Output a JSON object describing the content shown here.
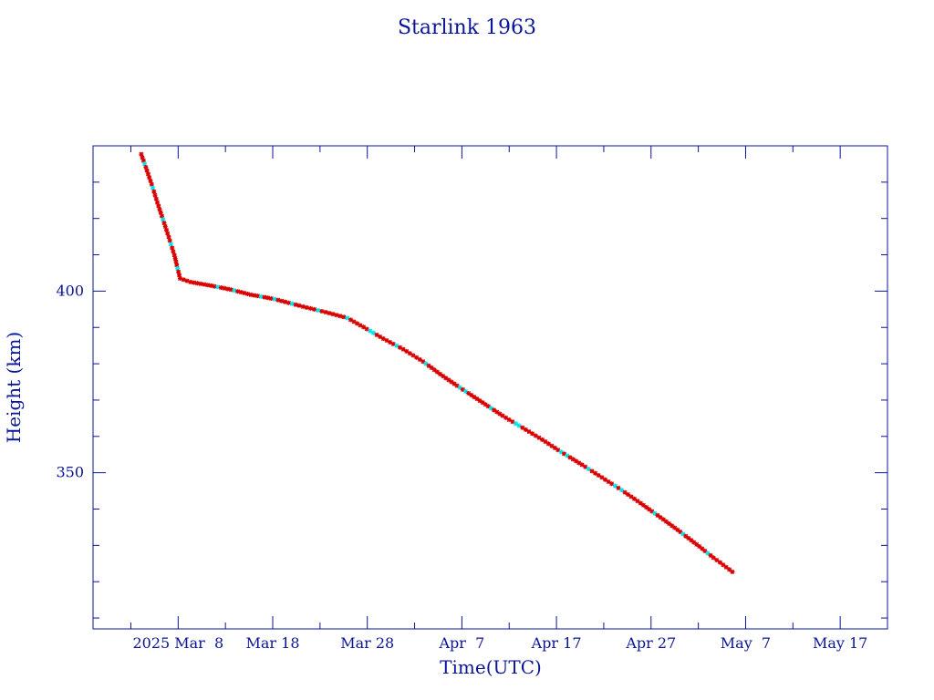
{
  "colors": {
    "axis": "#0a1496",
    "line": "#000000",
    "point_primary": "#d90000",
    "point_secondary": "#00e5ee"
  },
  "chart_data": {
    "type": "line",
    "title": "Starlink 1963",
    "xlabel": "Time(UTC)",
    "ylabel": "Height (km)",
    "x_range_days": [
      -9.0,
      75.0
    ],
    "ylim": [
      307,
      440
    ],
    "x_ticks": [
      {
        "day": 0,
        "label": "2025 Mar  8"
      },
      {
        "day": 10,
        "label": "Mar 18"
      },
      {
        "day": 20,
        "label": "Mar 28"
      },
      {
        "day": 30,
        "label": "Apr  7"
      },
      {
        "day": 40,
        "label": "Apr 17"
      },
      {
        "day": 50,
        "label": "Apr 27"
      },
      {
        "day": 60,
        "label": "May  7"
      },
      {
        "day": 70,
        "label": "May 17"
      }
    ],
    "y_ticks": [
      350,
      400
    ],
    "y_minor_step": 10,
    "x_minor_step": 5,
    "grid": false,
    "series": [
      {
        "name": "",
        "x": [
          -3.9,
          -3.3,
          -2.8,
          -2.2,
          -1.6,
          -1.0,
          -0.4,
          0.2,
          1.3,
          3.5,
          5.6,
          7.7,
          10.2,
          12.8,
          15.6,
          17.9,
          19.6,
          21.7,
          23.8,
          25.9,
          28.0,
          30.1,
          32.2,
          34.3,
          36.4,
          38.5,
          40.5,
          42.7,
          44.8,
          46.9,
          48.9,
          51.0,
          53.1,
          55.1,
          56.6,
          57.3,
          58.6
        ],
        "y": [
          437.7,
          433.2,
          429.4,
          424.4,
          419.7,
          414.9,
          409.9,
          403.5,
          402.5,
          401.5,
          400.4,
          399.0,
          397.8,
          396.0,
          394.2,
          392.6,
          390.1,
          386.9,
          384.0,
          380.6,
          376.6,
          372.9,
          369.3,
          365.7,
          362.4,
          359.1,
          355.7,
          352.2,
          348.7,
          345.2,
          341.6,
          337.7,
          333.7,
          329.7,
          326.6,
          325.3,
          322.7
        ]
      }
    ]
  }
}
